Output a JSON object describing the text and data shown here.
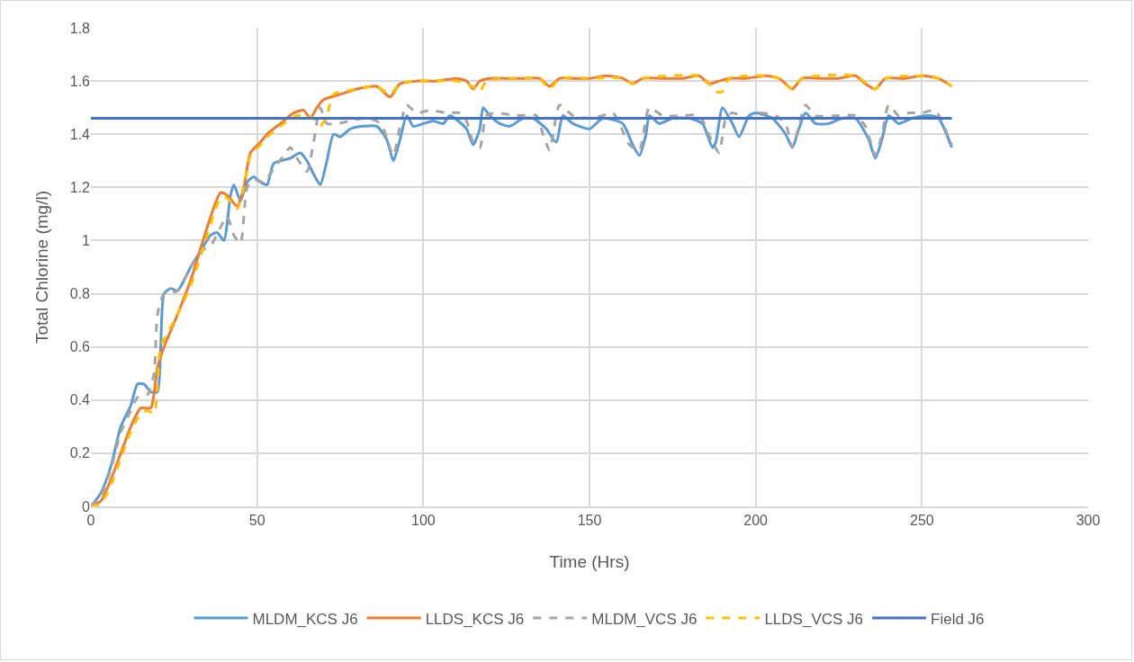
{
  "chart_data": {
    "type": "line",
    "xlabel": "Time (Hrs)",
    "ylabel": "Total Chlorine (mg/l)",
    "xlim": [
      0,
      300
    ],
    "xticks": [
      0,
      50,
      100,
      150,
      200,
      250,
      300
    ],
    "ylim": [
      0,
      1.8
    ],
    "yticks": [
      0,
      {
        "value": 0.2,
        "label": "0.2"
      },
      {
        "value": 0.4,
        "label": "0.4"
      },
      {
        "value": 0.6,
        "label": "0.6"
      },
      {
        "value": 0.8,
        "label": "0.8"
      },
      1,
      {
        "value": 1.2,
        "label": "1.2"
      },
      {
        "value": 1.4,
        "label": "1.4"
      },
      {
        "value": 1.6,
        "label": "1.6"
      },
      {
        "value": 1.8,
        "label": "1.8"
      }
    ],
    "grid": true,
    "legend": "bottom",
    "marker": "none",
    "series": [
      {
        "name": "MLDM_KCS J6",
        "color": "#5b9bd5",
        "line_style": "solid",
        "x": [
          0,
          3,
          6,
          9,
          12,
          14,
          16,
          18,
          20,
          21,
          22,
          24,
          26,
          28,
          30,
          33,
          36,
          38,
          40,
          42,
          43,
          45,
          47,
          49,
          51,
          53,
          55,
          60,
          63,
          65,
          67,
          69,
          71,
          73,
          75,
          78,
          82,
          86,
          89,
          91,
          93,
          95,
          97,
          100,
          103,
          106,
          108,
          113,
          115,
          117,
          118,
          120,
          123,
          126,
          130,
          133,
          137,
          140,
          142,
          145,
          150,
          154,
          160,
          163,
          165,
          167,
          168,
          171,
          175,
          180,
          184,
          187,
          188,
          190,
          193,
          195,
          198,
          200,
          205,
          209,
          211,
          213,
          215,
          218,
          222,
          226,
          230,
          234,
          236,
          238,
          240,
          243,
          247,
          252,
          255,
          259
        ],
        "values": [
          0,
          0.05,
          0.15,
          0.3,
          0.38,
          0.46,
          0.46,
          0.43,
          0.43,
          0.6,
          0.8,
          0.82,
          0.81,
          0.85,
          0.9,
          0.96,
          1.02,
          1.03,
          1.0,
          1.17,
          1.21,
          1.15,
          1.22,
          1.24,
          1.22,
          1.21,
          1.29,
          1.31,
          1.33,
          1.3,
          1.25,
          1.21,
          1.3,
          1.4,
          1.39,
          1.42,
          1.43,
          1.43,
          1.38,
          1.3,
          1.38,
          1.47,
          1.43,
          1.44,
          1.45,
          1.44,
          1.47,
          1.42,
          1.36,
          1.42,
          1.5,
          1.47,
          1.44,
          1.43,
          1.46,
          1.46,
          1.42,
          1.37,
          1.47,
          1.44,
          1.42,
          1.46,
          1.44,
          1.36,
          1.32,
          1.4,
          1.47,
          1.44,
          1.46,
          1.46,
          1.44,
          1.35,
          1.37,
          1.5,
          1.44,
          1.39,
          1.47,
          1.48,
          1.46,
          1.4,
          1.35,
          1.42,
          1.48,
          1.44,
          1.44,
          1.46,
          1.46,
          1.38,
          1.31,
          1.38,
          1.47,
          1.44,
          1.46,
          1.47,
          1.46,
          1.35
        ]
      },
      {
        "name": "LLDS_KCS J6",
        "color": "#ed7d31",
        "line_style": "solid",
        "x": [
          0,
          3,
          6,
          9,
          12,
          15,
          18,
          20,
          22,
          26,
          30,
          35,
          39,
          41,
          44,
          46,
          48,
          51,
          53,
          57,
          61,
          64,
          66,
          68,
          70,
          75,
          80,
          86,
          90,
          93,
          98,
          104,
          110,
          113,
          115,
          117,
          120,
          125,
          130,
          135,
          138,
          141,
          145,
          150,
          155,
          160,
          163,
          166,
          172,
          178,
          183,
          186,
          189,
          192,
          197,
          203,
          207,
          209,
          211,
          214,
          220,
          225,
          230,
          233,
          236,
          239,
          245,
          250,
          255,
          259
        ],
        "values": [
          0,
          0.02,
          0.1,
          0.2,
          0.3,
          0.37,
          0.37,
          0.52,
          0.6,
          0.72,
          0.85,
          1.05,
          1.18,
          1.17,
          1.13,
          1.2,
          1.33,
          1.37,
          1.4,
          1.44,
          1.48,
          1.49,
          1.46,
          1.5,
          1.53,
          1.55,
          1.57,
          1.58,
          1.54,
          1.59,
          1.6,
          1.6,
          1.61,
          1.6,
          1.57,
          1.6,
          1.61,
          1.61,
          1.61,
          1.61,
          1.58,
          1.61,
          1.61,
          1.61,
          1.62,
          1.61,
          1.59,
          1.61,
          1.61,
          1.61,
          1.62,
          1.59,
          1.6,
          1.61,
          1.61,
          1.62,
          1.61,
          1.59,
          1.57,
          1.61,
          1.61,
          1.61,
          1.62,
          1.59,
          1.57,
          1.61,
          1.61,
          1.62,
          1.61,
          1.58
        ]
      },
      {
        "name": "MLDM_VCS J6",
        "color": "#a5a5a5",
        "line_style": "dashed",
        "x": [
          0,
          3,
          6,
          9,
          12,
          14,
          17,
          19,
          20,
          22,
          26,
          30,
          33,
          36,
          39,
          41,
          43,
          45,
          47,
          49,
          52,
          55,
          58,
          60,
          62,
          65,
          67,
          69,
          71,
          74,
          78,
          82,
          86,
          88,
          91,
          93,
          95,
          98,
          102,
          107,
          111,
          113,
          115,
          117,
          119,
          122,
          128,
          134,
          136,
          138,
          141,
          145,
          150,
          154,
          157,
          159,
          162,
          165,
          168,
          172,
          178,
          183,
          187,
          189,
          191,
          193,
          198,
          201,
          206,
          209,
          211,
          213,
          215,
          218,
          225,
          230,
          233,
          236,
          238,
          240,
          243,
          246,
          250,
          254,
          257,
          259
        ],
        "values": [
          0,
          0.04,
          0.14,
          0.28,
          0.36,
          0.41,
          0.42,
          0.5,
          0.72,
          0.8,
          0.81,
          0.9,
          0.96,
          0.98,
          1.05,
          1.09,
          1.02,
          0.99,
          1.2,
          1.23,
          1.22,
          1.27,
          1.32,
          1.35,
          1.31,
          1.26,
          1.37,
          1.5,
          1.44,
          1.44,
          1.45,
          1.46,
          1.45,
          1.42,
          1.32,
          1.43,
          1.51,
          1.48,
          1.49,
          1.48,
          1.48,
          1.45,
          1.37,
          1.35,
          1.47,
          1.48,
          1.47,
          1.47,
          1.4,
          1.34,
          1.51,
          1.47,
          1.46,
          1.47,
          1.48,
          1.44,
          1.36,
          1.34,
          1.5,
          1.47,
          1.47,
          1.47,
          1.37,
          1.33,
          1.46,
          1.48,
          1.46,
          1.48,
          1.47,
          1.44,
          1.35,
          1.43,
          1.51,
          1.47,
          1.47,
          1.47,
          1.43,
          1.32,
          1.4,
          1.51,
          1.47,
          1.48,
          1.48,
          1.49,
          1.42,
          1.36
        ]
      },
      {
        "name": "LLDS_VCS J6",
        "color": "#ffc000",
        "line_style": "dashed",
        "x": [
          0,
          3,
          6,
          9,
          12,
          15,
          17,
          19,
          20,
          21,
          26,
          30,
          34,
          37,
          39,
          41,
          44,
          46,
          48,
          51,
          54,
          58,
          62,
          65,
          67,
          69,
          71,
          73,
          80,
          86,
          90,
          93,
          98,
          104,
          110,
          113,
          116,
          117,
          119,
          125,
          130,
          135,
          138,
          141,
          150,
          160,
          163,
          166,
          183,
          186,
          188,
          190,
          192,
          203,
          207,
          211,
          214,
          230,
          236,
          239,
          250,
          255,
          259
        ],
        "values": [
          0,
          0.01,
          0.08,
          0.18,
          0.28,
          0.35,
          0.36,
          0.35,
          0.45,
          0.6,
          0.72,
          0.83,
          0.98,
          1.1,
          1.16,
          1.16,
          1.12,
          1.2,
          1.32,
          1.36,
          1.4,
          1.44,
          1.47,
          1.47,
          1.46,
          1.43,
          1.47,
          1.55,
          1.57,
          1.58,
          1.55,
          1.59,
          1.6,
          1.6,
          1.6,
          1.59,
          1.57,
          1.56,
          1.6,
          1.61,
          1.61,
          1.61,
          1.57,
          1.61,
          1.61,
          1.61,
          1.59,
          1.61,
          1.62,
          1.59,
          1.56,
          1.56,
          1.61,
          1.62,
          1.61,
          1.57,
          1.61,
          1.62,
          1.57,
          1.61,
          1.62,
          1.61,
          1.58
        ]
      },
      {
        "name": "Field J6",
        "color": "#4472c4",
        "line_style": "solid",
        "x": [
          0,
          259
        ],
        "values": [
          1.46,
          1.46
        ]
      }
    ]
  }
}
